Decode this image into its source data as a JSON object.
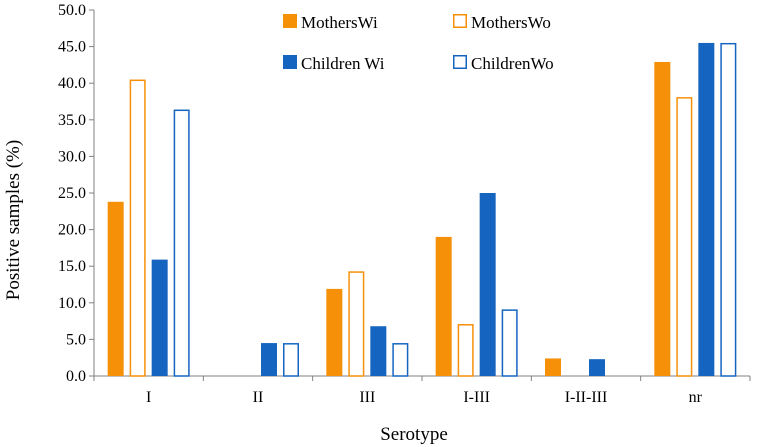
{
  "chart_data": {
    "type": "bar",
    "title": "",
    "xlabel": "Serotype",
    "ylabel": "Positive samples (%)",
    "ylim": [
      0,
      50
    ],
    "ytick_step": 5,
    "ytick_decimals": 1,
    "grid": false,
    "legend_position": "top-center",
    "categories": [
      "I",
      "II",
      "III",
      "I-III",
      "I-II-III",
      "nr"
    ],
    "series": [
      {
        "name": "MothersWi",
        "style": "filled",
        "color": "#F79009",
        "values": [
          23.8,
          0,
          11.9,
          19.0,
          2.4,
          42.9
        ]
      },
      {
        "name": "MothersWo",
        "style": "outline",
        "color": "#F79009",
        "values": [
          40.5,
          0,
          14.3,
          7.1,
          0,
          38.1
        ]
      },
      {
        "name": "Children Wi",
        "style": "filled",
        "color": "#1565C0",
        "values": [
          15.9,
          4.5,
          6.8,
          25.0,
          2.3,
          45.5
        ]
      },
      {
        "name": "ChildrenWo",
        "style": "outline",
        "color": "#1565C0",
        "values": [
          36.4,
          4.5,
          4.5,
          9.1,
          0,
          45.5
        ]
      }
    ]
  }
}
